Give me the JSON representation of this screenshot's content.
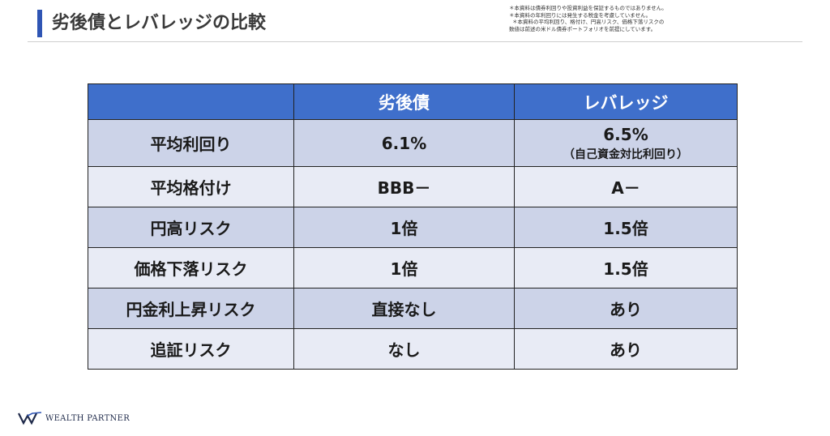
{
  "header": {
    "title": "劣後債とレバレッジの比較",
    "notes": [
      "＊本資料は債券利回りや投資利益を保証するものではありません。",
      "＊本資料の年利回りには発生する税金を考慮していません。",
      "＊本資料の平均利回り、格付け、円高リスク、価格下落リスクの",
      "数値は前述の米ドル債券ポートフォリオを前提にしています。"
    ]
  },
  "table": {
    "columns": [
      "",
      "劣後債",
      "レバレッジ"
    ],
    "rows": [
      {
        "label": "平均利回り",
        "subordinated": "6.1%",
        "leverage": "6.5%",
        "leverage_sub": "（自己資金対比利回り）"
      },
      {
        "label": "平均格付け",
        "subordinated": "BBB－",
        "leverage": "A－"
      },
      {
        "label": "円高リスク",
        "subordinated": "1倍",
        "leverage": "1.5倍"
      },
      {
        "label": "価格下落リスク",
        "subordinated": "1倍",
        "leverage": "1.5倍"
      },
      {
        "label": "円金利上昇リスク",
        "subordinated": "直接なし",
        "leverage": "あり"
      },
      {
        "label": "追証リスク",
        "subordinated": "なし",
        "leverage": "あり"
      }
    ]
  },
  "footer": {
    "logo_text": "WEALTH PARTNER",
    "logo_icon": "wealth-partner-logo-icon",
    "logo_color": "#2f55b4"
  },
  "colors": {
    "accent": "#2f55b4",
    "header_row": "#3f6fcb",
    "row_dark": "#ccd3e8",
    "row_light": "#e8ebf5"
  }
}
